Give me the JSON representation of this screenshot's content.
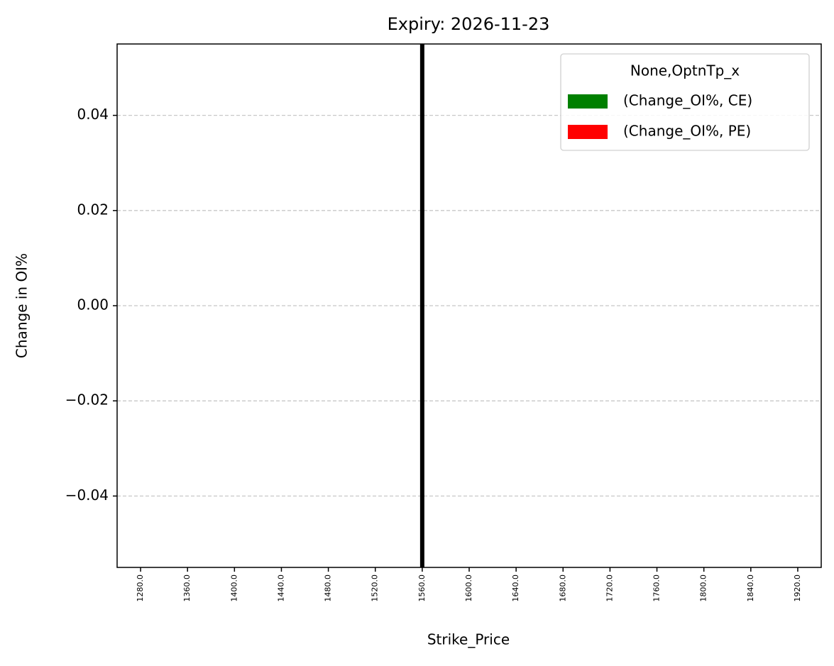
{
  "chart_data": {
    "type": "bar",
    "title": "Expiry: 2026-11-23",
    "xlabel": "Strike_Price",
    "ylabel": "Change in OI%",
    "categories": [
      "1280.0",
      "1360.0",
      "1400.0",
      "1440.0",
      "1480.0",
      "1520.0",
      "1560.0",
      "1600.0",
      "1640.0",
      "1680.0",
      "1720.0",
      "1760.0",
      "1800.0",
      "1840.0",
      "1920.0"
    ],
    "series": [
      {
        "name": "(Change_OI%, CE)",
        "color": "#008000",
        "values": [
          0,
          0,
          0,
          0,
          0,
          0,
          0,
          0,
          0,
          0,
          0,
          0,
          0,
          0,
          0
        ]
      },
      {
        "name": "(Change_OI%, PE)",
        "color": "#ff0000",
        "values": [
          0,
          0,
          0,
          0,
          0,
          0,
          0,
          0,
          0,
          0,
          0,
          0,
          0,
          0,
          0
        ]
      }
    ],
    "legend_title": "None,OptnTp_x",
    "legend": "upper right",
    "reference_line": {
      "x": "1560.0",
      "color": "#000000"
    },
    "ylim": [
      -0.055,
      0.055
    ],
    "yticks": [
      {
        "value": -0.04,
        "label": "−0.04"
      },
      {
        "value": -0.02,
        "label": "−0.02"
      },
      {
        "value": 0,
        "label": "0.00"
      },
      0.02,
      0.04
    ],
    "grid": true
  }
}
